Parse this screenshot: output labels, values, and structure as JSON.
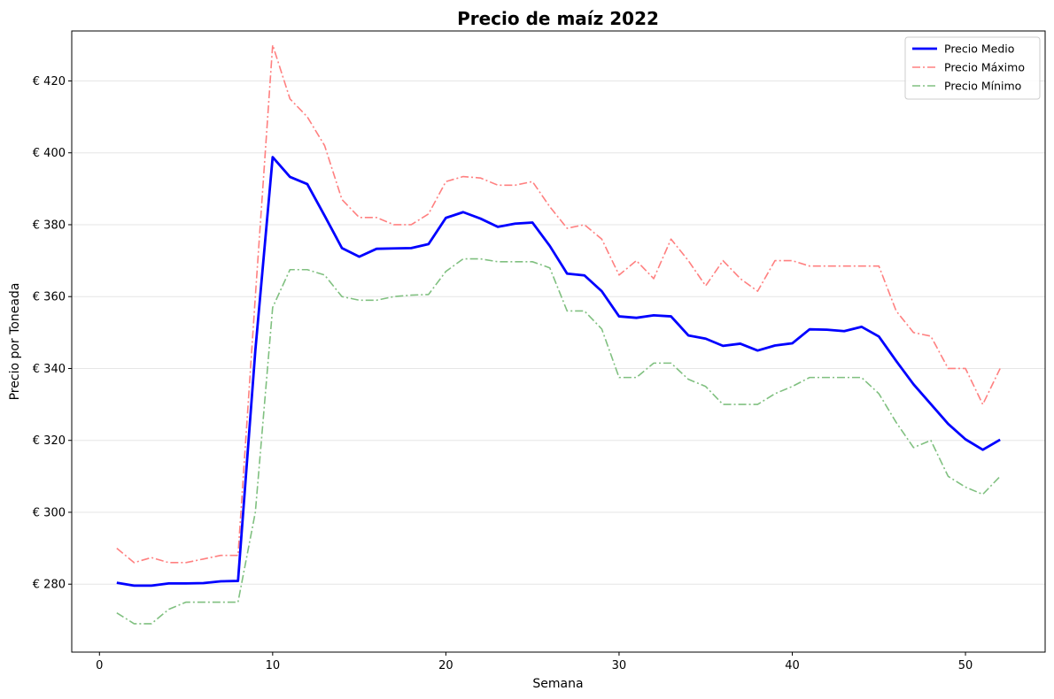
{
  "chart_data": {
    "type": "line",
    "title": "Precio de maíz 2022",
    "xlabel": "Semana",
    "ylabel": "Precio por Toneada",
    "xlim": [
      -1.6,
      54.6
    ],
    "ylim": [
      261.1,
      433.9
    ],
    "x_ticks": [
      0,
      10,
      20,
      30,
      40,
      50
    ],
    "y_ticks": [
      280,
      300,
      320,
      340,
      360,
      380,
      400,
      420
    ],
    "y_tick_prefix": "€ ",
    "grid": "horizontal",
    "legend_position": "top-right",
    "x": [
      1,
      2,
      3,
      4,
      5,
      6,
      7,
      8,
      9,
      10,
      11,
      12,
      13,
      14,
      15,
      16,
      17,
      18,
      19,
      20,
      21,
      22,
      23,
      24,
      25,
      26,
      27,
      28,
      29,
      30,
      31,
      32,
      33,
      34,
      35,
      36,
      37,
      38,
      39,
      40,
      41,
      42,
      43,
      44,
      45,
      46,
      47,
      48,
      49,
      50,
      51,
      52
    ],
    "series": [
      {
        "name": "Precio Medio",
        "color": "#0000ff",
        "style": "solid",
        "values": [
          280.4,
          279.6,
          279.6,
          280.2,
          280.2,
          280.3,
          280.8,
          280.9,
          345.0,
          398.8,
          393.3,
          391.3,
          382.5,
          373.5,
          371.1,
          373.3,
          373.4,
          373.5,
          374.6,
          381.9,
          383.5,
          381.7,
          379.4,
          380.3,
          380.6,
          374.1,
          366.4,
          365.9,
          361.5,
          354.5,
          354.1,
          354.8,
          354.5,
          349.2,
          348.3,
          346.3,
          346.9,
          345.0,
          346.4,
          347.0,
          350.9,
          350.8,
          350.4,
          351.6,
          348.9,
          342.1,
          335.6,
          330.1,
          324.6,
          320.3,
          317.4,
          320.2
        ]
      },
      {
        "name": "Precio Máximo",
        "color": "#ff8080",
        "style": "dashdot",
        "values": [
          290.0,
          286.0,
          287.4,
          286.0,
          286.0,
          287.0,
          288.0,
          288.0,
          360.0,
          430.0,
          415.0,
          410.0,
          402.0,
          387.0,
          382.0,
          382.0,
          380.0,
          380.0,
          383.0,
          392.0,
          393.4,
          393.0,
          391.0,
          391.0,
          392.0,
          385.0,
          379.0,
          380.0,
          376.0,
          366.0,
          370.0,
          365.0,
          376.0,
          370.0,
          363.0,
          370.0,
          365.0,
          361.5,
          370.0,
          370.0,
          368.5,
          368.5,
          368.5,
          368.5,
          368.5,
          356.0,
          350.0,
          349.0,
          340.0,
          340.0,
          330.0,
          340.0
        ]
      },
      {
        "name": "Precio Mínimo",
        "color": "#80c080",
        "style": "dashdot",
        "values": [
          272.0,
          269.0,
          269.0,
          273.0,
          275.0,
          275.0,
          275.0,
          275.0,
          300.0,
          357.0,
          367.5,
          367.5,
          366.0,
          360.0,
          359.0,
          359.0,
          360.0,
          360.4,
          360.6,
          367.0,
          370.5,
          370.5,
          369.7,
          369.7,
          369.7,
          368.0,
          356.0,
          356.0,
          351.0,
          337.5,
          337.5,
          341.5,
          341.5,
          337.0,
          335.0,
          330.0,
          330.0,
          330.0,
          333.0,
          335.0,
          337.5,
          337.5,
          337.5,
          337.5,
          333.0,
          325.0,
          318.0,
          320.0,
          310.0,
          307.0,
          305.0,
          310.0
        ]
      }
    ]
  }
}
